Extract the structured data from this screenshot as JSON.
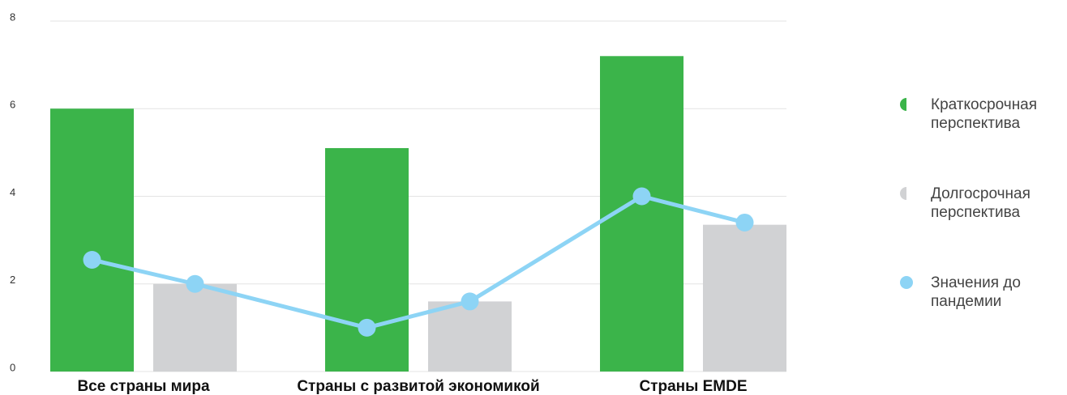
{
  "chart_data": {
    "type": "bar",
    "categories": [
      "Все страны мира",
      "Страны с развитой экономикой",
      "Страны EMDE"
    ],
    "series": [
      {
        "name": "Краткосрочная перспектива",
        "color": "#3bb44a",
        "values": [
          6.0,
          5.1,
          7.2
        ]
      },
      {
        "name": "Долгосрочная перспектива",
        "color": "#d1d2d4",
        "values": [
          2.0,
          1.6,
          3.35
        ]
      },
      {
        "name": "Значения до пандемии",
        "color": "#8dd4f5",
        "type": "line",
        "values": [
          [
            2.55,
            2.0
          ],
          [
            1.0,
            1.6
          ],
          [
            4.0,
            3.4
          ]
        ]
      }
    ],
    "ylim": [
      0,
      8
    ],
    "yticks": [
      0,
      2,
      4,
      6,
      8
    ],
    "grid": true,
    "legend": "right"
  }
}
